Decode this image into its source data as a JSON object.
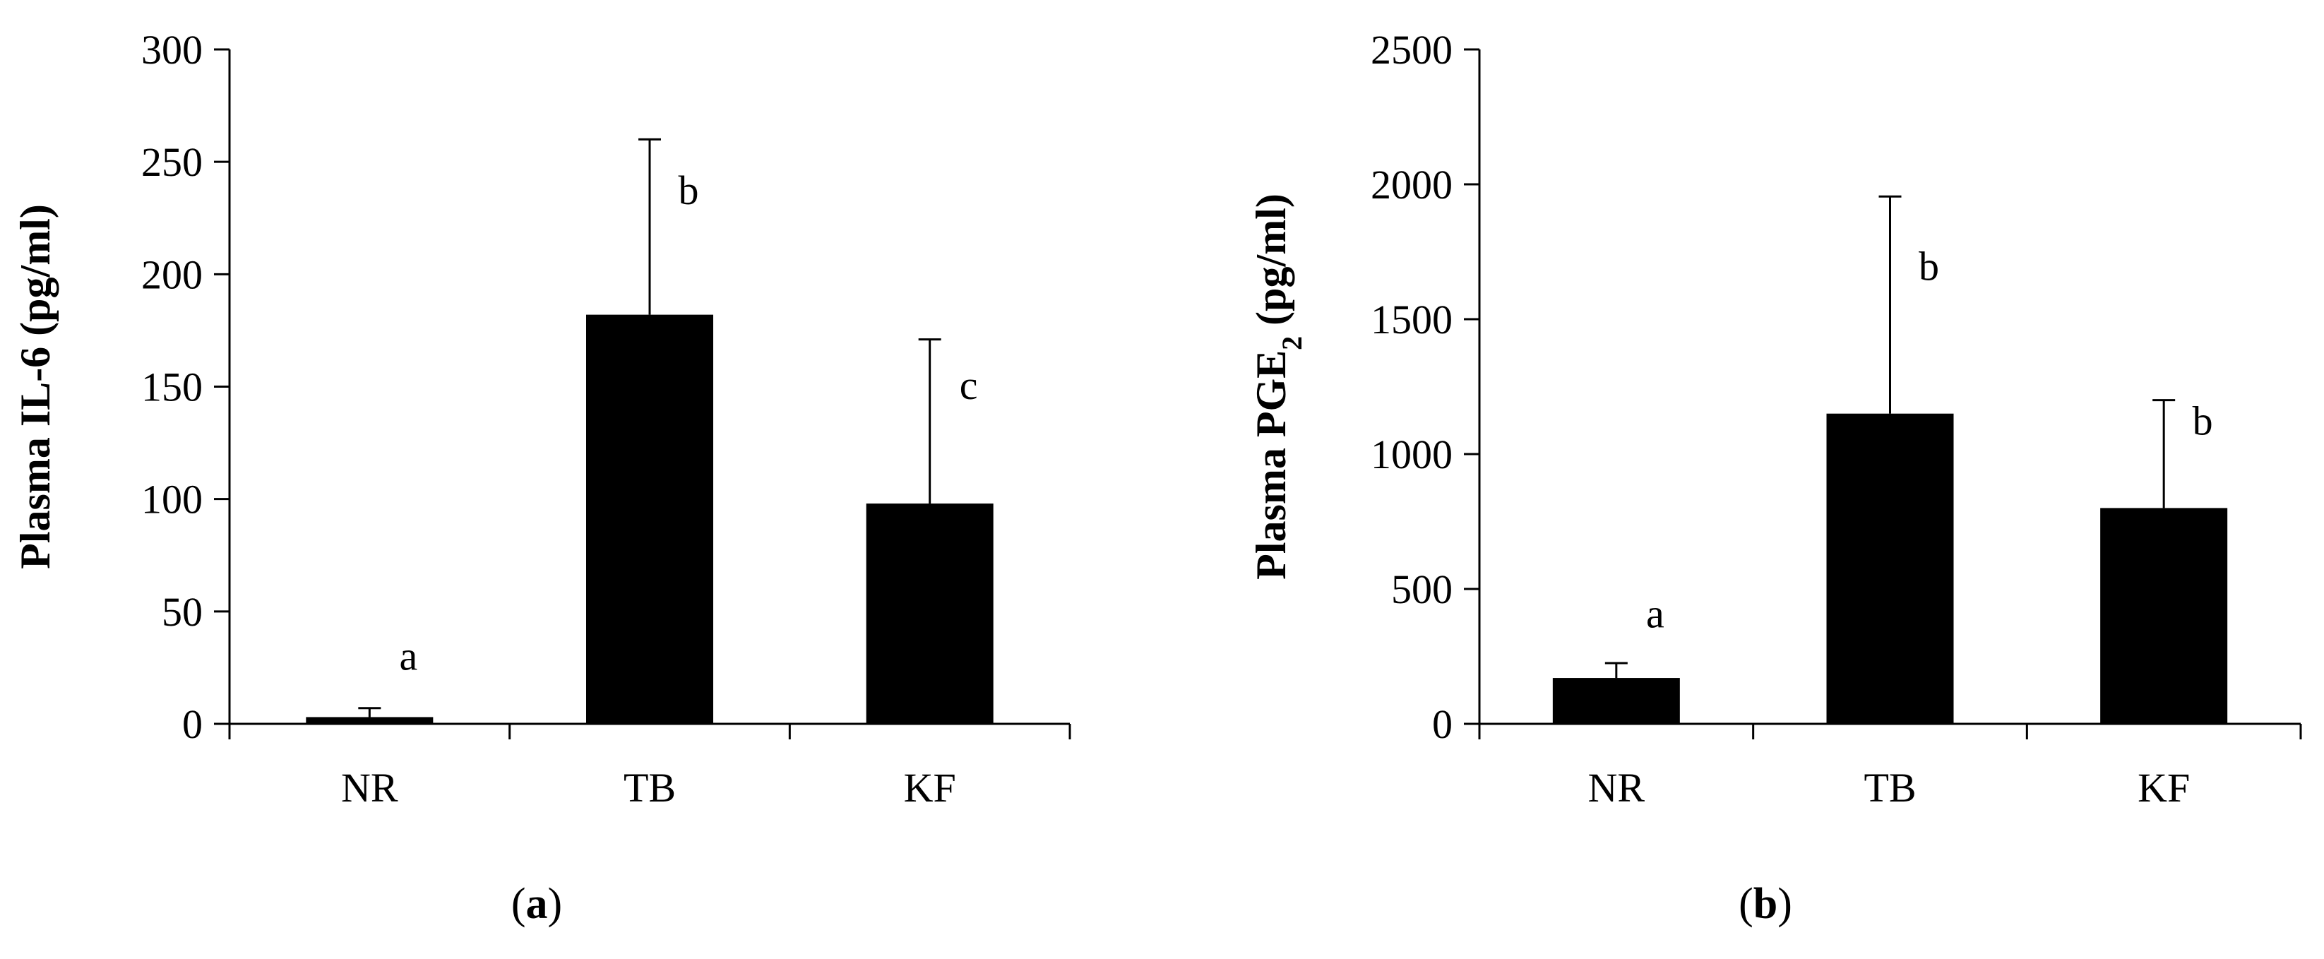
{
  "chart_data": [
    {
      "type": "bar",
      "panel_label": "a",
      "categories": [
        "NR",
        "TB",
        "KF"
      ],
      "values": [
        3,
        182,
        98
      ],
      "error": [
        4,
        78,
        73
      ],
      "letters": [
        "a",
        "b",
        "c"
      ],
      "ylabel": "Plasma IL-6 (pg/ml)",
      "ylabel_parts": {
        "before": "Plasma IL-6 (pg/ml)",
        "subscript": "",
        "after": ""
      },
      "ylim": [
        0,
        300
      ],
      "yticks": [
        0,
        50,
        100,
        150,
        200,
        250,
        300
      ],
      "legend": "none",
      "grid": false,
      "bar_color": "#000000"
    },
    {
      "type": "bar",
      "panel_label": "b",
      "categories": [
        "NR",
        "TB",
        "KF"
      ],
      "values": [
        170,
        1150,
        800
      ],
      "error": [
        55,
        805,
        400
      ],
      "letters": [
        "a",
        "b",
        "b"
      ],
      "ylabel": "Plasma PGE2 (pg/ml)",
      "ylabel_parts": {
        "before": "Plasma PGE",
        "subscript": "2",
        "after": " (pg/ml)"
      },
      "ylim": [
        0,
        2500
      ],
      "yticks": [
        0,
        500,
        1000,
        1500,
        2000,
        2500
      ],
      "legend": "none",
      "grid": false,
      "bar_color": "#000000"
    }
  ]
}
